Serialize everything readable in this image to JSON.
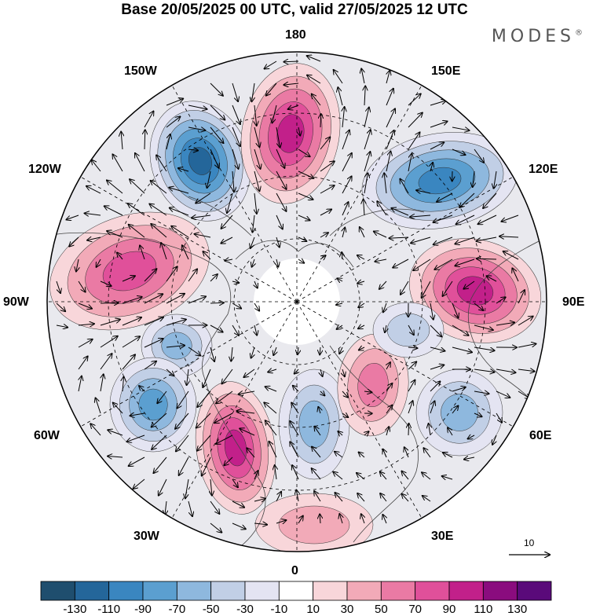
{
  "title": "Base 20/05/2025 00 UTC, valid 27/05/2025 12 UTC",
  "brand": {
    "name": "MODES",
    "mark": "®"
  },
  "longitude_labels": {
    "top": "180",
    "bottom": "0",
    "left": "90W",
    "right": "90E",
    "upper_left_1": "150W",
    "upper_left_2": "120W",
    "upper_right_1": "150E",
    "upper_right_2": "120E",
    "lower_left_1": "60W",
    "lower_left_2": "30W",
    "lower_right_1": "60E",
    "lower_right_2": "30E"
  },
  "reference_vector": {
    "label": "10"
  },
  "colorbar": {
    "ticks": [
      "-130",
      "-110",
      "-90",
      "-70",
      "-50",
      "-30",
      "-10",
      "10",
      "30",
      "50",
      "70",
      "90",
      "110",
      "130"
    ],
    "colors": [
      "#1f4e6e",
      "#24669a",
      "#3a86c0",
      "#5b9fd0",
      "#8eb8de",
      "#c1cfe6",
      "#e4e4f2",
      "#ffffff",
      "#f8d6da",
      "#f2aab8",
      "#ea7aa4",
      "#e0509a",
      "#c2208a",
      "#8a0c7e",
      "#5a0a7a"
    ]
  },
  "anomaly_centers": [
    {
      "sign": "negative",
      "level": 110,
      "lon": "140W"
    },
    {
      "sign": "positive",
      "level": 90,
      "lon": "175W"
    },
    {
      "sign": "negative",
      "level": 90,
      "lon": "125E"
    },
    {
      "sign": "positive",
      "level": 70,
      "lon": "110W"
    },
    {
      "sign": "positive",
      "level": 90,
      "lon": "85E"
    },
    {
      "sign": "negative",
      "level": 50,
      "lon": "75W"
    },
    {
      "sign": "negative",
      "level": 70,
      "lon": "55W"
    },
    {
      "sign": "positive",
      "level": 90,
      "lon": "20W"
    },
    {
      "sign": "negative",
      "level": 50,
      "lon": "10E"
    },
    {
      "sign": "positive",
      "level": 50,
      "lon": "40E"
    },
    {
      "sign": "negative",
      "level": 50,
      "lon": "70E"
    },
    {
      "sign": "negative",
      "level": 30,
      "lon": "70E"
    },
    {
      "sign": "positive",
      "level": 30,
      "lon": "10E"
    }
  ]
}
